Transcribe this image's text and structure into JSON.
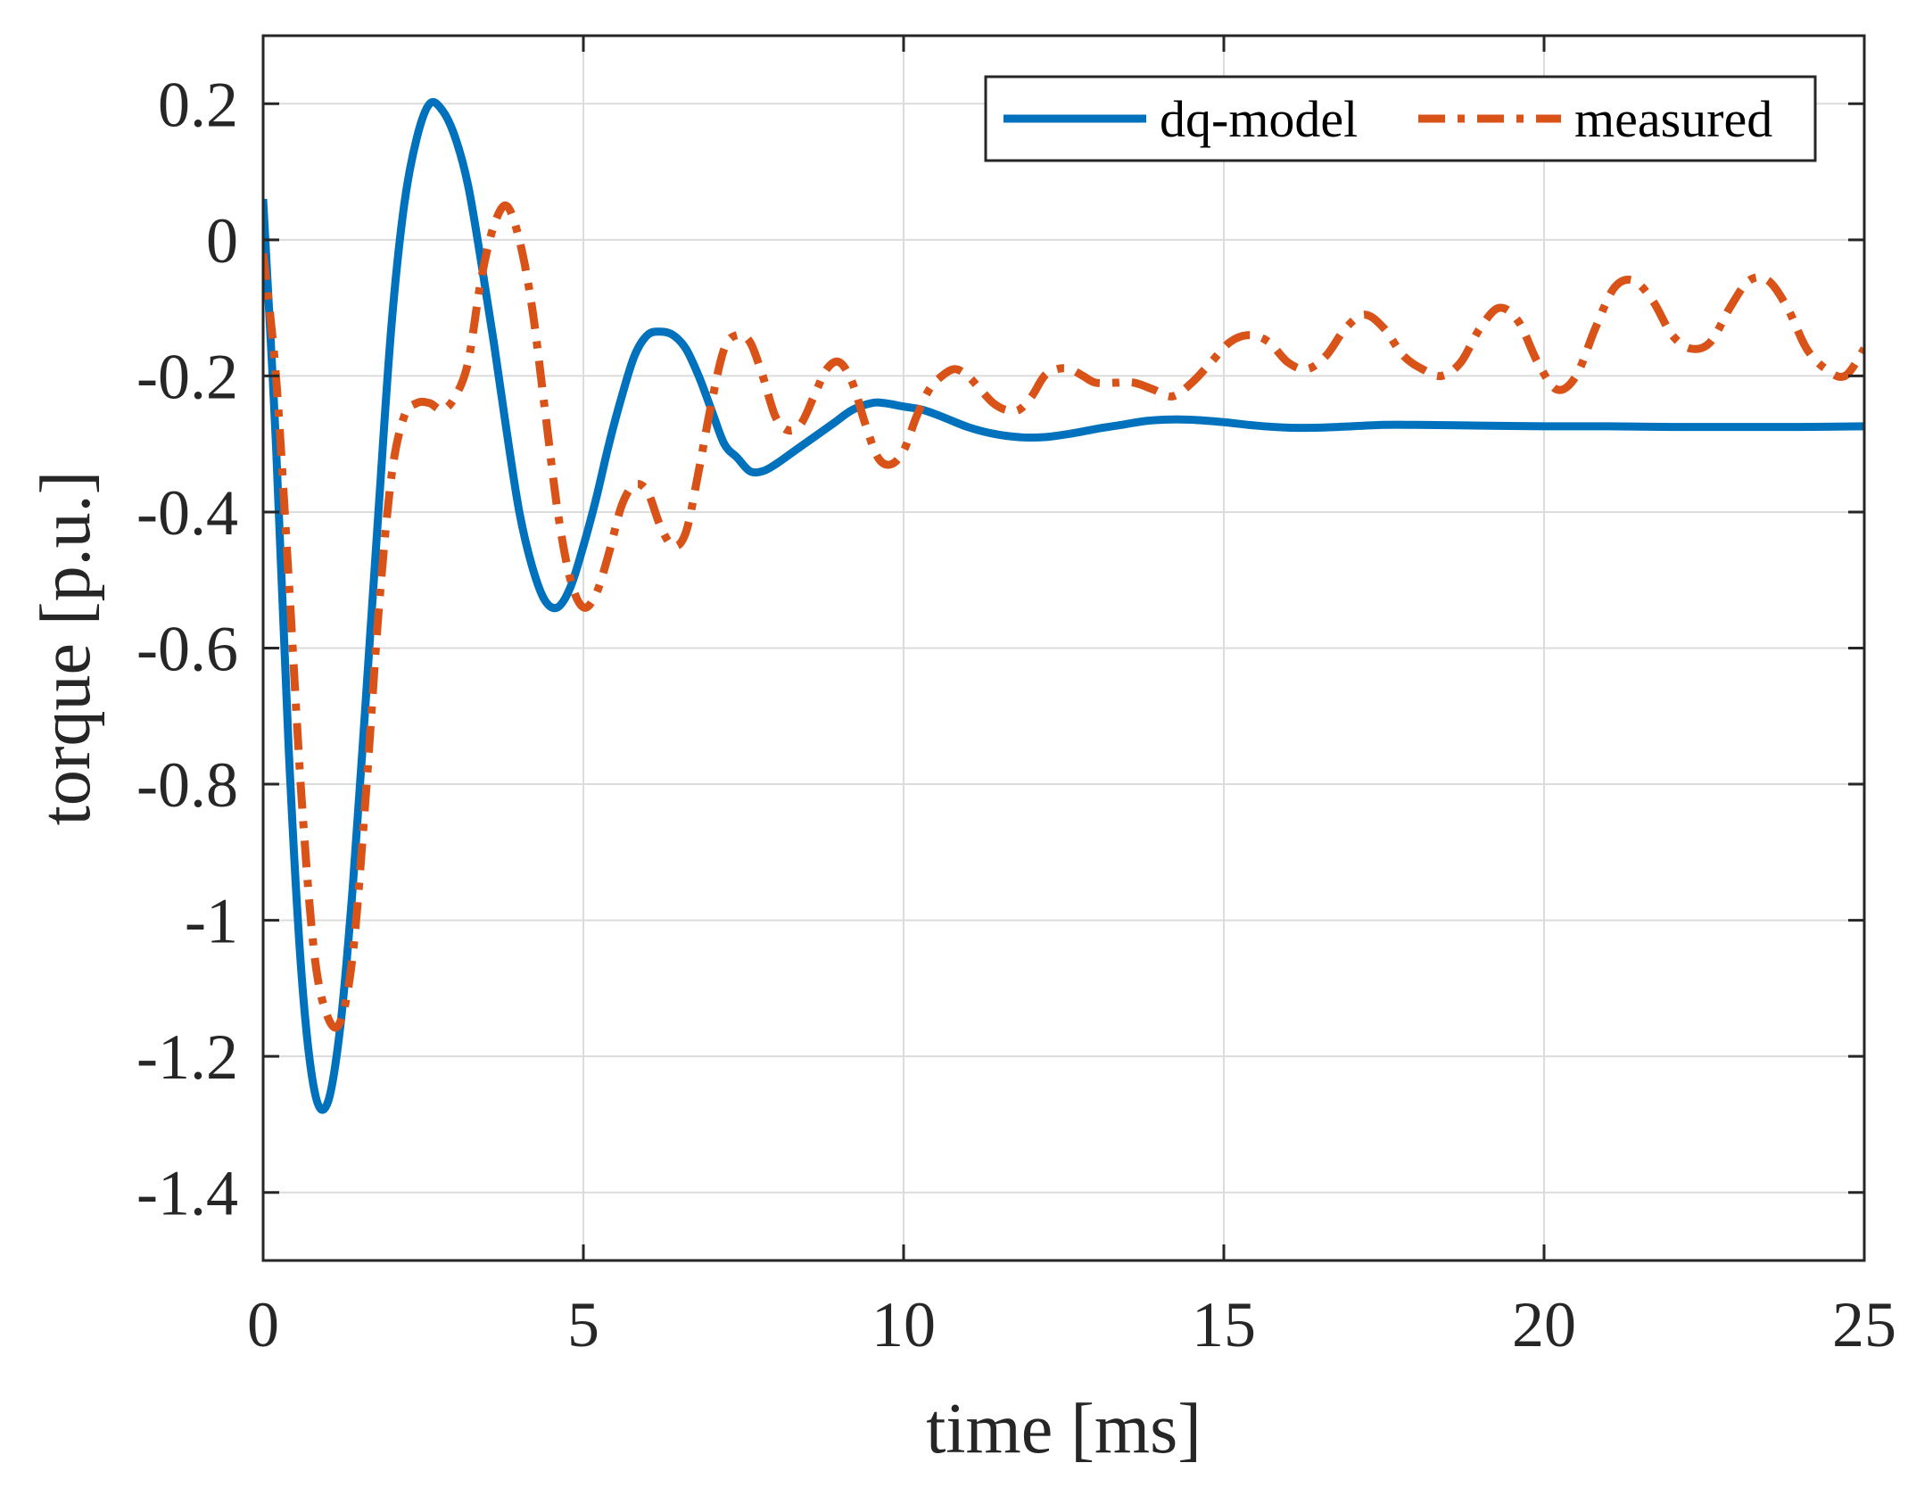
{
  "chart_data": {
    "type": "line",
    "title": "",
    "xlabel": "time [ms]",
    "ylabel": "torque [p.u.]",
    "xlim": [
      0,
      25
    ],
    "ylim": [
      -1.5,
      0.3
    ],
    "xticks": [
      0,
      5,
      10,
      15,
      20,
      25
    ],
    "xtick_labels": [
      "0",
      "5",
      "10",
      "15",
      "20",
      "25"
    ],
    "yticks": [
      0.2,
      0,
      -0.2,
      -0.4,
      -0.6,
      -0.8,
      -1,
      -1.2,
      -1.4
    ],
    "ytick_labels": [
      "0.2",
      "0",
      "-0.2",
      "-0.4",
      "-0.6",
      "-0.8",
      "-1",
      "-1.2",
      "-1.4"
    ],
    "grid": true,
    "legend_position": "top-right",
    "series": [
      {
        "name": "dq-model",
        "color": "#0072BD",
        "style": "solid",
        "x": [
          0,
          0.2,
          0.4,
          0.6,
          0.8,
          1.0,
          1.2,
          1.4,
          1.6,
          1.8,
          2.0,
          2.2,
          2.4,
          2.6,
          2.8,
          3.0,
          3.2,
          3.4,
          3.6,
          3.8,
          4.0,
          4.2,
          4.4,
          4.6,
          4.8,
          5.0,
          5.2,
          5.4,
          5.6,
          5.8,
          6.0,
          6.2,
          6.4,
          6.6,
          6.8,
          7.0,
          7.2,
          7.4,
          7.6,
          7.8,
          8.0,
          8.3,
          8.6,
          8.9,
          9.2,
          9.5,
          9.7,
          10.0,
          10.3,
          10.6,
          11.0,
          11.4,
          11.8,
          12.2,
          12.6,
          13.0,
          13.4,
          13.8,
          14.2,
          14.6,
          15.0,
          15.5,
          16.0,
          16.5,
          17.0,
          17.5,
          18.0,
          19.0,
          20.0,
          21.0,
          22.0,
          23.0,
          24.0,
          25.0
        ],
        "y": [
          0.06,
          -0.3,
          -0.75,
          -1.08,
          -1.25,
          -1.27,
          -1.16,
          -0.95,
          -0.68,
          -0.4,
          -0.13,
          0.05,
          0.15,
          0.2,
          0.19,
          0.15,
          0.08,
          -0.03,
          -0.15,
          -0.28,
          -0.4,
          -0.48,
          -0.53,
          -0.54,
          -0.51,
          -0.45,
          -0.38,
          -0.3,
          -0.23,
          -0.17,
          -0.14,
          -0.135,
          -0.14,
          -0.16,
          -0.2,
          -0.25,
          -0.3,
          -0.32,
          -0.34,
          -0.34,
          -0.33,
          -0.31,
          -0.29,
          -0.27,
          -0.25,
          -0.24,
          -0.24,
          -0.245,
          -0.25,
          -0.26,
          -0.275,
          -0.285,
          -0.29,
          -0.29,
          -0.285,
          -0.278,
          -0.272,
          -0.266,
          -0.264,
          -0.265,
          -0.268,
          -0.273,
          -0.276,
          -0.276,
          -0.274,
          -0.272,
          -0.272,
          -0.273,
          -0.274,
          -0.274,
          -0.275,
          -0.275,
          -0.275,
          -0.274
        ]
      },
      {
        "name": "measured",
        "color": "#D95319",
        "style": "dashdot",
        "x": [
          0,
          0.2,
          0.4,
          0.6,
          0.8,
          1.0,
          1.2,
          1.4,
          1.6,
          1.8,
          2.0,
          2.2,
          2.4,
          2.6,
          2.8,
          3.0,
          3.2,
          3.4,
          3.6,
          3.8,
          4.0,
          4.2,
          4.4,
          4.6,
          4.8,
          5.0,
          5.2,
          5.4,
          5.6,
          5.8,
          6.0,
          6.2,
          6.4,
          6.6,
          6.8,
          7.0,
          7.2,
          7.4,
          7.6,
          7.8,
          8.0,
          8.2,
          8.4,
          8.6,
          8.8,
          9.0,
          9.2,
          9.4,
          9.6,
          9.8,
          10.0,
          10.2,
          10.4,
          10.6,
          10.8,
          11.0,
          11.2,
          11.4,
          11.6,
          11.8,
          12.0,
          12.2,
          12.4,
          12.6,
          12.8,
          13.0,
          13.3,
          13.6,
          13.9,
          14.2,
          14.5,
          14.8,
          15.1,
          15.4,
          15.7,
          16.0,
          16.3,
          16.6,
          16.9,
          17.2,
          17.5,
          17.8,
          18.1,
          18.4,
          18.7,
          19.0,
          19.3,
          19.6,
          19.9,
          20.2,
          20.5,
          20.8,
          21.1,
          21.4,
          21.7,
          22.0,
          22.3,
          22.6,
          22.9,
          23.2,
          23.5,
          23.8,
          24.1,
          24.4,
          24.7,
          25.0
        ],
        "y": [
          -0.02,
          -0.2,
          -0.5,
          -0.82,
          -1.05,
          -1.14,
          -1.15,
          -1.05,
          -0.82,
          -0.55,
          -0.35,
          -0.26,
          -0.24,
          -0.24,
          -0.25,
          -0.23,
          -0.18,
          -0.06,
          0.02,
          0.05,
          0.0,
          -0.1,
          -0.25,
          -0.4,
          -0.5,
          -0.54,
          -0.52,
          -0.46,
          -0.39,
          -0.36,
          -0.37,
          -0.42,
          -0.45,
          -0.43,
          -0.34,
          -0.24,
          -0.16,
          -0.14,
          -0.15,
          -0.2,
          -0.26,
          -0.28,
          -0.27,
          -0.23,
          -0.19,
          -0.18,
          -0.21,
          -0.27,
          -0.32,
          -0.33,
          -0.31,
          -0.26,
          -0.22,
          -0.2,
          -0.19,
          -0.2,
          -0.22,
          -0.24,
          -0.25,
          -0.25,
          -0.23,
          -0.2,
          -0.19,
          -0.19,
          -0.2,
          -0.21,
          -0.21,
          -0.21,
          -0.22,
          -0.23,
          -0.21,
          -0.18,
          -0.15,
          -0.14,
          -0.15,
          -0.18,
          -0.19,
          -0.17,
          -0.13,
          -0.11,
          -0.13,
          -0.17,
          -0.19,
          -0.2,
          -0.18,
          -0.13,
          -0.1,
          -0.12,
          -0.18,
          -0.22,
          -0.2,
          -0.13,
          -0.07,
          -0.06,
          -0.09,
          -0.14,
          -0.16,
          -0.15,
          -0.1,
          -0.06,
          -0.06,
          -0.1,
          -0.16,
          -0.19,
          -0.2,
          -0.16
        ]
      }
    ]
  }
}
